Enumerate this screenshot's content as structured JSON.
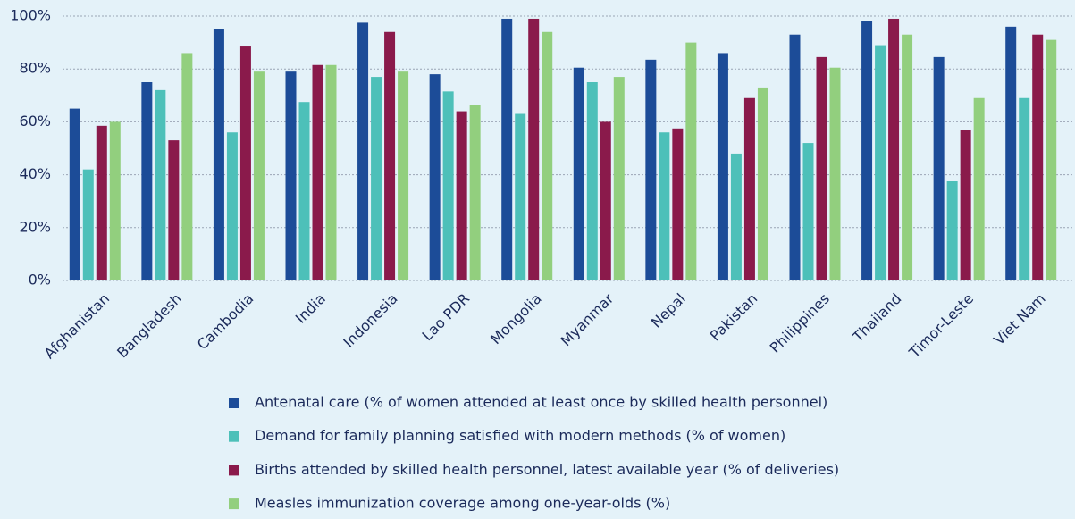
{
  "chart_data": {
    "type": "bar",
    "categories": [
      "Afghanistan",
      "Bangladesh",
      "Cambodia",
      "India",
      "Indonesia",
      "Lao PDR",
      "Mongolia",
      "Myanmar",
      "Nepal",
      "Pakistan",
      "Philippines",
      "Thailand",
      "Timor-Leste",
      "Viet Nam"
    ],
    "series": [
      {
        "name": "Antenatal care (% of women attended at least once by skilled health personnel)",
        "color": "#1c4c98",
        "values": [
          65,
          75,
          95,
          79,
          97.5,
          78,
          99,
          80.5,
          83.5,
          86,
          93,
          98,
          84.5,
          96
        ]
      },
      {
        "name": "Demand for family planning satisfied with modern methods (% of women)",
        "color": "#4dc0b9",
        "values": [
          42,
          72,
          56,
          67.5,
          77,
          71.5,
          63,
          75,
          56,
          48,
          52,
          89,
          37.5,
          69
        ]
      },
      {
        "name": "Births attended by skilled health personnel, latest available year (% of deliveries)",
        "color": "#8a1a4b",
        "values": [
          58.5,
          53,
          88.5,
          81.5,
          94,
          64,
          99,
          60,
          57.5,
          69,
          84.5,
          99,
          57,
          93
        ]
      },
      {
        "name": "Measles immunization coverage among one-year-olds (%)",
        "color": "#92cf7e",
        "values": [
          60,
          86,
          79,
          81.5,
          79,
          66.5,
          94,
          77,
          90,
          73,
          80.5,
          93,
          69,
          91
        ]
      }
    ],
    "ylim": [
      0,
      100
    ],
    "yticks": [
      {
        "value": 0,
        "label": "0%"
      },
      {
        "value": 20,
        "label": "20%"
      },
      {
        "value": 40,
        "label": "40%"
      },
      {
        "value": 60,
        "label": "60%"
      },
      {
        "value": 80,
        "label": "80%"
      },
      {
        "value": 100,
        "label": "100%"
      }
    ],
    "grid": true,
    "legend": "bottom"
  }
}
